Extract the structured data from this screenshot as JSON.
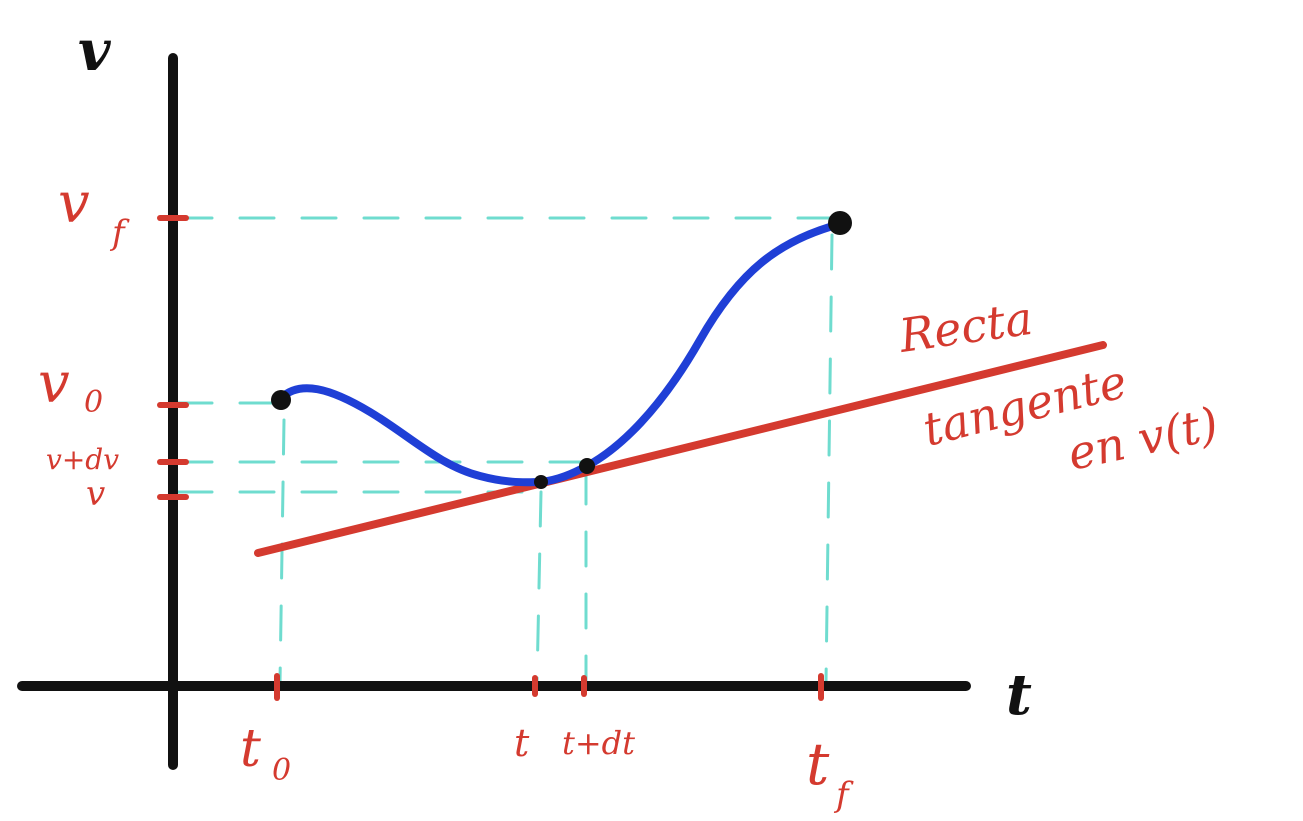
{
  "axes": {
    "y_label": "v",
    "x_label": "t"
  },
  "y_ticks": {
    "vf": "v",
    "vf_sub": "f",
    "v0": "v",
    "v0_sub": "0",
    "v_dv": "v+dv",
    "v": "v"
  },
  "x_ticks": {
    "t0": "t",
    "t0_sub": "0",
    "t": "t",
    "t_dt": "t+dt",
    "tf": "t",
    "tf_sub": "f"
  },
  "annotation": {
    "line1": "Recta",
    "line2": "tangente",
    "line3": "en v(t)"
  },
  "colors": {
    "axis": "#111111",
    "curve": "#1f3fd6",
    "tangent": "#d43a2f",
    "guides": "#6fdccf",
    "labels": "#d43a2f",
    "points": "#111111"
  }
}
